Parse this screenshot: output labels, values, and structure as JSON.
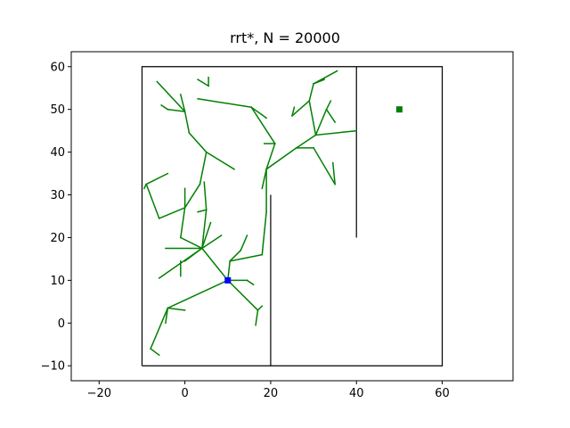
{
  "chart_data": {
    "type": "line",
    "title": "rrt*, N = 20000",
    "xlabel": "",
    "ylabel": "",
    "xlim": [
      -26.5,
      76.5
    ],
    "ylim": [
      -13.5,
      63.5
    ],
    "xticks": [
      -20,
      0,
      20,
      40,
      60
    ],
    "yticks": [
      -10,
      0,
      10,
      20,
      30,
      40,
      50,
      60
    ],
    "xtick_labels": [
      "−20",
      "0",
      "20",
      "40",
      "60"
    ],
    "ytick_labels": [
      "−10",
      "0",
      "10",
      "20",
      "30",
      "40",
      "50",
      "60"
    ],
    "grid": false,
    "colors": {
      "tree": "#008000",
      "obstacles": "#000000",
      "start": "#0000ff",
      "goal": "#008000"
    },
    "start": [
      10,
      10
    ],
    "goal": [
      50,
      50
    ],
    "obstacles": [
      [
        [
          -10,
          -10
        ],
        [
          60,
          -10
        ],
        [
          60,
          60
        ],
        [
          -10,
          60
        ],
        [
          -10,
          -10
        ]
      ],
      [
        [
          20,
          -10
        ],
        [
          20,
          30
        ]
      ],
      [
        [
          40,
          20
        ],
        [
          40,
          60
        ]
      ]
    ],
    "tree_edges": [
      [
        [
          10,
          10
        ],
        [
          4,
          17.5
        ]
      ],
      [
        [
          4,
          17.5
        ],
        [
          -1,
          20
        ]
      ],
      [
        [
          -1,
          20
        ],
        [
          0,
          27
        ]
      ],
      [
        [
          0,
          27
        ],
        [
          -6,
          24.5
        ]
      ],
      [
        [
          -6,
          24.5
        ],
        [
          -9,
          32.5
        ]
      ],
      [
        [
          -9,
          32.5
        ],
        [
          -4,
          35
        ]
      ],
      [
        [
          -9,
          32.5
        ],
        [
          -9.5,
          31.5
        ]
      ],
      [
        [
          0,
          27
        ],
        [
          0,
          31.5
        ]
      ],
      [
        [
          0,
          27
        ],
        [
          3.5,
          32.5
        ]
      ],
      [
        [
          3.5,
          32.5
        ],
        [
          5,
          40
        ]
      ],
      [
        [
          5,
          40
        ],
        [
          11.5,
          36
        ]
      ],
      [
        [
          5,
          40
        ],
        [
          1,
          44.5
        ]
      ],
      [
        [
          1,
          44.5
        ],
        [
          0,
          49.5
        ]
      ],
      [
        [
          0,
          49.5
        ],
        [
          -6.5,
          56.5
        ]
      ],
      [
        [
          0,
          49.5
        ],
        [
          -4,
          50
        ]
      ],
      [
        [
          -4,
          50
        ],
        [
          -5.5,
          51
        ]
      ],
      [
        [
          0,
          49.5
        ],
        [
          -1,
          53.5
        ]
      ],
      [
        [
          4,
          17.5
        ],
        [
          -4.5,
          17.5
        ]
      ],
      [
        [
          4,
          17.5
        ],
        [
          -6,
          10.5
        ]
      ],
      [
        [
          4,
          17.5
        ],
        [
          0,
          14.5
        ]
      ],
      [
        [
          -1,
          14.5
        ],
        [
          -1,
          11
        ]
      ],
      [
        [
          4,
          17.5
        ],
        [
          6,
          23.5
        ]
      ],
      [
        [
          4,
          17.5
        ],
        [
          5,
          26.5
        ]
      ],
      [
        [
          5,
          26.5
        ],
        [
          3,
          26
        ]
      ],
      [
        [
          5,
          26.5
        ],
        [
          4.5,
          33
        ]
      ],
      [
        [
          4,
          17.5
        ],
        [
          8.5,
          20.5
        ]
      ],
      [
        [
          10,
          10
        ],
        [
          10.5,
          14.5
        ]
      ],
      [
        [
          10.5,
          14.5
        ],
        [
          13,
          17
        ]
      ],
      [
        [
          13,
          17
        ],
        [
          14.5,
          20.5
        ]
      ],
      [
        [
          10.5,
          14.5
        ],
        [
          18,
          16
        ]
      ],
      [
        [
          18,
          16
        ],
        [
          19,
          26
        ]
      ],
      [
        [
          19,
          26
        ],
        [
          19,
          36
        ]
      ],
      [
        [
          19,
          36
        ],
        [
          18,
          31.5
        ]
      ],
      [
        [
          19,
          36
        ],
        [
          21,
          42
        ]
      ],
      [
        [
          21,
          42
        ],
        [
          18.5,
          42
        ]
      ],
      [
        [
          21,
          42
        ],
        [
          15.5,
          50.5
        ]
      ],
      [
        [
          15.5,
          50.5
        ],
        [
          3,
          52.5
        ]
      ],
      [
        [
          15.5,
          50.5
        ],
        [
          19,
          48
        ]
      ],
      [
        [
          19,
          36
        ],
        [
          26,
          41
        ]
      ],
      [
        [
          26,
          41
        ],
        [
          30.5,
          44
        ]
      ],
      [
        [
          30.5,
          44
        ],
        [
          29,
          52
        ]
      ],
      [
        [
          29,
          52
        ],
        [
          25,
          48.5
        ]
      ],
      [
        [
          25,
          48.5
        ],
        [
          25.5,
          50.5
        ]
      ],
      [
        [
          29,
          52
        ],
        [
          30,
          56
        ]
      ],
      [
        [
          30,
          56
        ],
        [
          35.5,
          59
        ]
      ],
      [
        [
          30,
          56
        ],
        [
          32.5,
          57
        ]
      ],
      [
        [
          30.5,
          44
        ],
        [
          33,
          50
        ]
      ],
      [
        [
          33,
          50
        ],
        [
          34,
          52
        ]
      ],
      [
        [
          33,
          50
        ],
        [
          35,
          47
        ]
      ],
      [
        [
          30.5,
          44
        ],
        [
          40,
          45
        ]
      ],
      [
        [
          26,
          41
        ],
        [
          30,
          41
        ]
      ],
      [
        [
          30,
          41
        ],
        [
          35,
          32.5
        ]
      ],
      [
        [
          35,
          32.5
        ],
        [
          34.5,
          37.5
        ]
      ],
      [
        [
          10,
          10
        ],
        [
          14.5,
          10
        ]
      ],
      [
        [
          14.5,
          10
        ],
        [
          16,
          9
        ]
      ],
      [
        [
          10,
          10
        ],
        [
          17,
          3
        ]
      ],
      [
        [
          17,
          3
        ],
        [
          18,
          4
        ]
      ],
      [
        [
          17,
          3
        ],
        [
          16.5,
          -0.5
        ]
      ],
      [
        [
          10,
          10
        ],
        [
          -4,
          3.5
        ]
      ],
      [
        [
          -4,
          3.5
        ],
        [
          -8,
          -6
        ]
      ],
      [
        [
          -8,
          -6
        ],
        [
          -6,
          -7.5
        ]
      ],
      [
        [
          -4,
          3.5
        ],
        [
          0,
          3
        ]
      ],
      [
        [
          -4,
          3.5
        ],
        [
          -4.5,
          0
        ]
      ],
      [
        [
          3,
          57
        ],
        [
          5.5,
          55.5
        ]
      ],
      [
        [
          5.5,
          55.5
        ],
        [
          5.5,
          57.5
        ]
      ]
    ]
  }
}
